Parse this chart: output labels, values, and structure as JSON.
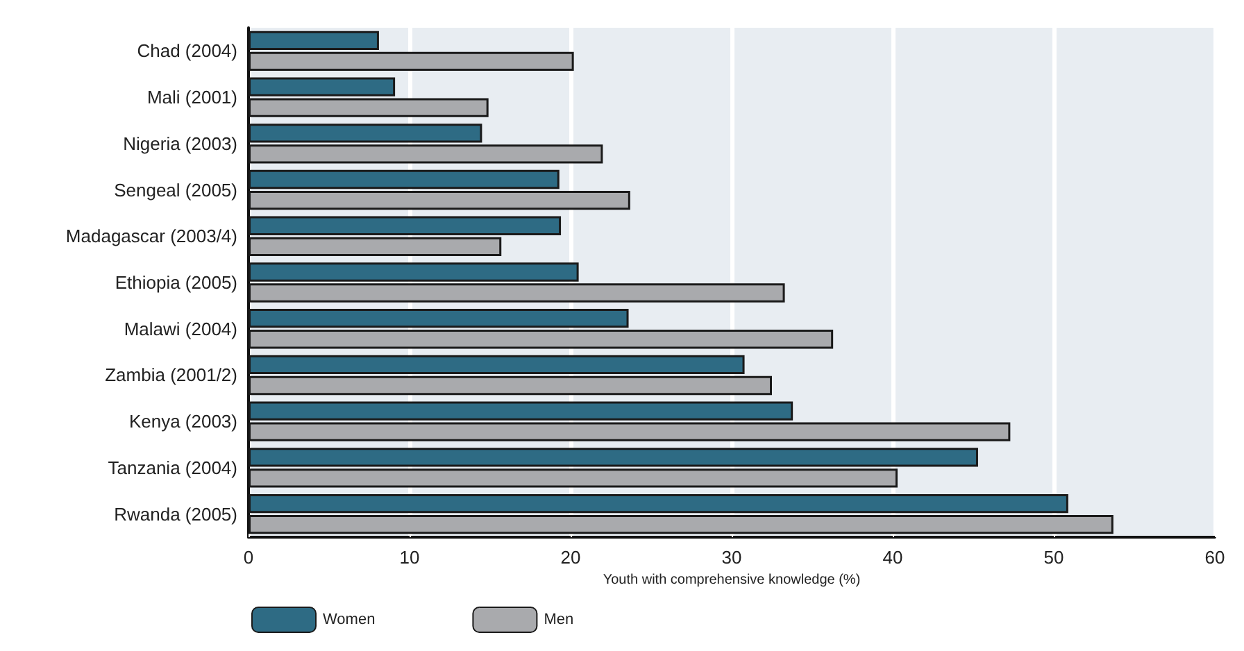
{
  "chart_data": {
    "type": "bar",
    "orientation": "horizontal",
    "xlabel": "Youth with comprehensive knowledge (%)",
    "categories": [
      "Chad (2004)",
      "Mali (2001)",
      "Nigeria (2003)",
      "Sengeal (2005)",
      "Madagascar (2003/4)",
      "Ethiopia (2005)",
      "Malawi (2004)",
      "Zambia (2001/2)",
      "Kenya (2003)",
      "Tanzania (2004)",
      "Rwanda (2005)"
    ],
    "series": [
      {
        "name": "Women",
        "color": "#2e6b84",
        "values": [
          8.1,
          9.1,
          14.5,
          19.3,
          19.4,
          20.5,
          23.6,
          30.8,
          33.8,
          45.3,
          50.9
        ]
      },
      {
        "name": "Men",
        "color": "#a9aaad",
        "values": [
          20.2,
          14.9,
          22.0,
          23.7,
          15.7,
          33.3,
          36.3,
          32.5,
          47.3,
          40.3,
          53.7
        ]
      }
    ],
    "xlim": [
      0,
      60
    ],
    "xticks": [
      0,
      10,
      20,
      30,
      40,
      50,
      60
    ],
    "grid": "x",
    "legend": "bottom left"
  }
}
